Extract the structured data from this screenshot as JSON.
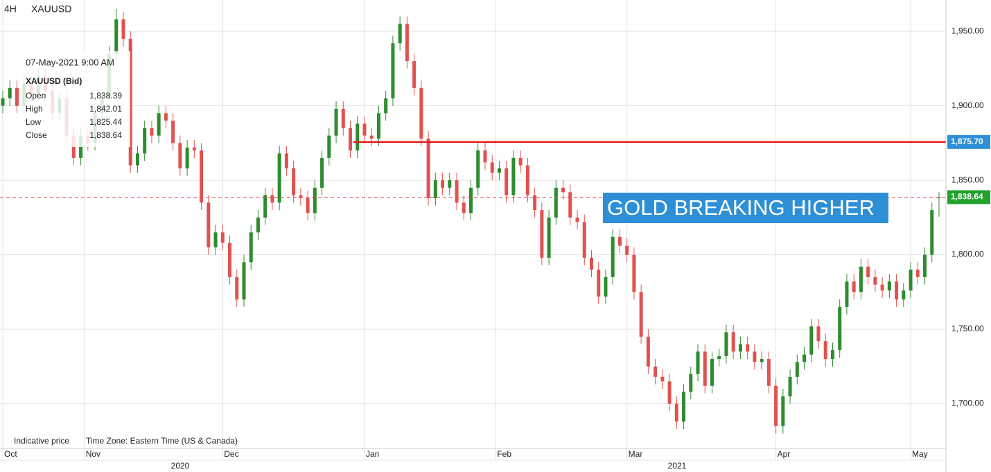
{
  "chart_data": {
    "type": "candlestick",
    "timeframe": "4H",
    "symbol": "XAUUSD",
    "up_color": "#2e8b2e",
    "down_color": "#e0524f",
    "ylim": [
      1670,
      1971
    ],
    "yticks": [
      {
        "value": 1700,
        "label": "1,700.00"
      },
      {
        "value": 1750,
        "label": "1,750.00"
      },
      {
        "value": 1800,
        "label": "1,800.00"
      },
      {
        "value": 1850,
        "label": "1,850.00"
      },
      {
        "value": 1900,
        "label": "1,900.00"
      },
      {
        "value": 1950,
        "label": "1,950.00"
      }
    ],
    "xticks": [
      {
        "value": 0,
        "label": "Oct"
      },
      {
        "value": 11.5,
        "label": "Nov"
      },
      {
        "value": 31,
        "label": "Dec"
      },
      {
        "value": 51,
        "label": "Jan"
      },
      {
        "value": 69.5,
        "label": "Feb"
      },
      {
        "value": 88,
        "label": "Mar"
      },
      {
        "value": 109,
        "label": "Apr"
      },
      {
        "value": 128,
        "label": "May"
      }
    ],
    "years": [
      "2020",
      "2021"
    ],
    "grid": true,
    "open": [
      1900,
      1905,
      1912,
      1900,
      1915,
      1908,
      1920,
      1910,
      1895,
      1905,
      1880,
      1865,
      1880,
      1875,
      1895,
      1905,
      1935,
      1958,
      1945,
      1860,
      1868,
      1885,
      1880,
      1895,
      1890,
      1875,
      1858,
      1872,
      1870,
      1835,
      1805,
      1815,
      1808,
      1785,
      1770,
      1795,
      1815,
      1825,
      1840,
      1835,
      1868,
      1858,
      1840,
      1838,
      1828,
      1845,
      1865,
      1880,
      1898,
      1885,
      1870,
      1888,
      1880,
      1878,
      1895,
      1905,
      1942,
      1955,
      1930,
      1912,
      1878,
      1838,
      1850,
      1845,
      1850,
      1835,
      1828,
      1845,
      1870,
      1862,
      1855,
      1858,
      1840,
      1865,
      1860,
      1840,
      1830,
      1798,
      1825,
      1845,
      1842,
      1825,
      1822,
      1798,
      1790,
      1772,
      1785,
      1812,
      1806,
      1800,
      1775,
      1745,
      1725,
      1718,
      1715,
      1700,
      1688,
      1708,
      1720,
      1735,
      1712,
      1730,
      1732,
      1748,
      1735,
      1740,
      1735,
      1728,
      1730,
      1712,
      1685,
      1705,
      1718,
      1728,
      1733,
      1752,
      1742,
      1730,
      1736,
      1765,
      1782,
      1775,
      1792,
      1785,
      1780,
      1776,
      1782,
      1770,
      1776,
      1790,
      1785,
      1800,
      1838.39
    ],
    "high": [
      1910,
      1917,
      1917,
      1920,
      1920,
      1925,
      1925,
      1915,
      1910,
      1910,
      1885,
      1885,
      1885,
      1900,
      1910,
      1940,
      1965,
      1963,
      1950,
      1873,
      1890,
      1890,
      1900,
      1900,
      1895,
      1880,
      1877,
      1877,
      1875,
      1840,
      1820,
      1820,
      1813,
      1790,
      1800,
      1820,
      1830,
      1845,
      1845,
      1873,
      1873,
      1863,
      1845,
      1843,
      1850,
      1870,
      1885,
      1903,
      1903,
      1890,
      1893,
      1893,
      1885,
      1900,
      1910,
      1947,
      1960,
      1960,
      1935,
      1917,
      1883,
      1855,
      1855,
      1855,
      1855,
      1840,
      1850,
      1875,
      1875,
      1867,
      1863,
      1863,
      1870,
      1870,
      1865,
      1845,
      1835,
      1830,
      1850,
      1850,
      1847,
      1830,
      1827,
      1803,
      1795,
      1790,
      1817,
      1817,
      1811,
      1805,
      1780,
      1750,
      1730,
      1723,
      1720,
      1705,
      1713,
      1725,
      1740,
      1740,
      1735,
      1737,
      1753,
      1753,
      1745,
      1745,
      1740,
      1735,
      1735,
      1717,
      1710,
      1723,
      1733,
      1738,
      1757,
      1757,
      1747,
      1741,
      1770,
      1787,
      1787,
      1797,
      1797,
      1790,
      1785,
      1787,
      1787,
      1781,
      1795,
      1795,
      1805,
      1835,
      1842.01
    ],
    "low": [
      1895,
      1900,
      1895,
      1895,
      1903,
      1903,
      1905,
      1890,
      1890,
      1875,
      1860,
      1860,
      1870,
      1870,
      1890,
      1900,
      1930,
      1940,
      1855,
      1855,
      1863,
      1875,
      1875,
      1885,
      1870,
      1853,
      1853,
      1865,
      1830,
      1800,
      1800,
      1803,
      1780,
      1765,
      1765,
      1790,
      1810,
      1820,
      1830,
      1830,
      1853,
      1835,
      1833,
      1823,
      1823,
      1840,
      1860,
      1875,
      1880,
      1865,
      1865,
      1875,
      1873,
      1873,
      1890,
      1900,
      1937,
      1925,
      1907,
      1873,
      1833,
      1833,
      1840,
      1840,
      1830,
      1823,
      1823,
      1840,
      1857,
      1850,
      1850,
      1835,
      1835,
      1855,
      1835,
      1825,
      1793,
      1793,
      1820,
      1837,
      1820,
      1817,
      1793,
      1785,
      1767,
      1767,
      1780,
      1801,
      1795,
      1770,
      1740,
      1720,
      1713,
      1710,
      1695,
      1683,
      1683,
      1703,
      1715,
      1707,
      1707,
      1725,
      1727,
      1730,
      1730,
      1730,
      1723,
      1723,
      1707,
      1680,
      1680,
      1700,
      1713,
      1723,
      1728,
      1737,
      1725,
      1725,
      1731,
      1760,
      1770,
      1770,
      1780,
      1775,
      1771,
      1771,
      1765,
      1765,
      1771,
      1780,
      1780,
      1795,
      1825.44
    ],
    "close": [
      1905,
      1912,
      1900,
      1915,
      1908,
      1920,
      1910,
      1895,
      1905,
      1880,
      1865,
      1880,
      1875,
      1895,
      1905,
      1935,
      1958,
      1945,
      1860,
      1868,
      1885,
      1880,
      1895,
      1890,
      1875,
      1858,
      1872,
      1870,
      1835,
      1805,
      1815,
      1808,
      1785,
      1770,
      1795,
      1815,
      1825,
      1840,
      1835,
      1868,
      1858,
      1840,
      1838,
      1828,
      1845,
      1865,
      1880,
      1898,
      1885,
      1870,
      1888,
      1880,
      1878,
      1895,
      1905,
      1942,
      1955,
      1930,
      1912,
      1878,
      1838,
      1850,
      1845,
      1850,
      1835,
      1828,
      1845,
      1870,
      1862,
      1855,
      1858,
      1840,
      1865,
      1860,
      1840,
      1830,
      1798,
      1825,
      1845,
      1842,
      1825,
      1822,
      1798,
      1790,
      1772,
      1785,
      1812,
      1806,
      1800,
      1775,
      1745,
      1725,
      1718,
      1715,
      1700,
      1688,
      1708,
      1720,
      1735,
      1712,
      1730,
      1732,
      1748,
      1735,
      1740,
      1735,
      1728,
      1730,
      1712,
      1685,
      1705,
      1718,
      1728,
      1733,
      1752,
      1742,
      1730,
      1736,
      1765,
      1782,
      1775,
      1792,
      1785,
      1780,
      1776,
      1782,
      1770,
      1776,
      1790,
      1785,
      1800,
      1830,
      1838.64
    ],
    "level_line": {
      "value": 1875.7,
      "label": "1,875.70",
      "color": "#e01b1b",
      "label_color": "#2d8fd5"
    },
    "last_price": {
      "value": 1838.64,
      "label": "1,838.64",
      "color": "#e05050",
      "label_color": "#22a22c"
    },
    "annotation": "GOLD BREAKING HIGHER",
    "tooltip": {
      "time": "07-May-2021 9:00 AM",
      "symbol": "XAUUSD (Bid)",
      "rows": [
        {
          "label": "Open",
          "value": "1,838.39"
        },
        {
          "label": "High",
          "value": "1,842.01"
        },
        {
          "label": "Low",
          "value": "1,825.44"
        },
        {
          "label": "Close",
          "value": "1,838.64"
        }
      ]
    },
    "footer": [
      "Indicative price",
      "Time Zone: Eastern Time (US & Canada)"
    ]
  }
}
